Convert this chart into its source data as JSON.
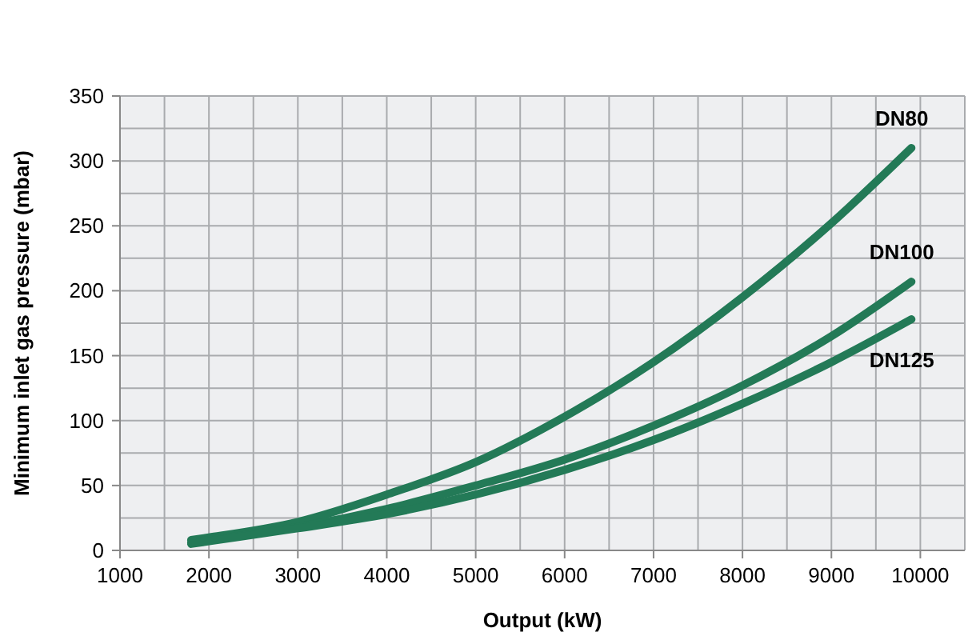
{
  "chart_data": {
    "type": "line",
    "xlabel": "Output (kW)",
    "ylabel": "Minimum inlet gas pressure (mbar)",
    "xlim": [
      1000,
      10500
    ],
    "ylim": [
      0,
      350
    ],
    "xticks": [
      1000,
      2000,
      3000,
      4000,
      5000,
      6000,
      7000,
      8000,
      9000,
      10000
    ],
    "yticks": [
      0,
      50,
      100,
      150,
      200,
      250,
      300,
      350
    ],
    "grid": true,
    "line_style": "solid",
    "series": [
      {
        "name": "DN80",
        "color": "#237a57",
        "x": [
          1800,
          2000,
          3000,
          4000,
          5000,
          6000,
          7000,
          8000,
          9000,
          9900
        ],
        "values": [
          8,
          10,
          22,
          43,
          68,
          103,
          145,
          195,
          252,
          310
        ]
      },
      {
        "name": "DN100",
        "color": "#237a57",
        "x": [
          1800,
          2000,
          3000,
          4000,
          5000,
          6000,
          7000,
          8000,
          9000,
          9900
        ],
        "values": [
          6,
          8,
          18,
          32,
          50,
          70,
          96,
          127,
          165,
          207
        ]
      },
      {
        "name": "DN125",
        "color": "#237a57",
        "x": [
          1800,
          2000,
          3000,
          4000,
          5000,
          6000,
          7000,
          8000,
          9000,
          9900
        ],
        "values": [
          5,
          7,
          17,
          28,
          43,
          62,
          85,
          113,
          145,
          178
        ]
      }
    ]
  }
}
